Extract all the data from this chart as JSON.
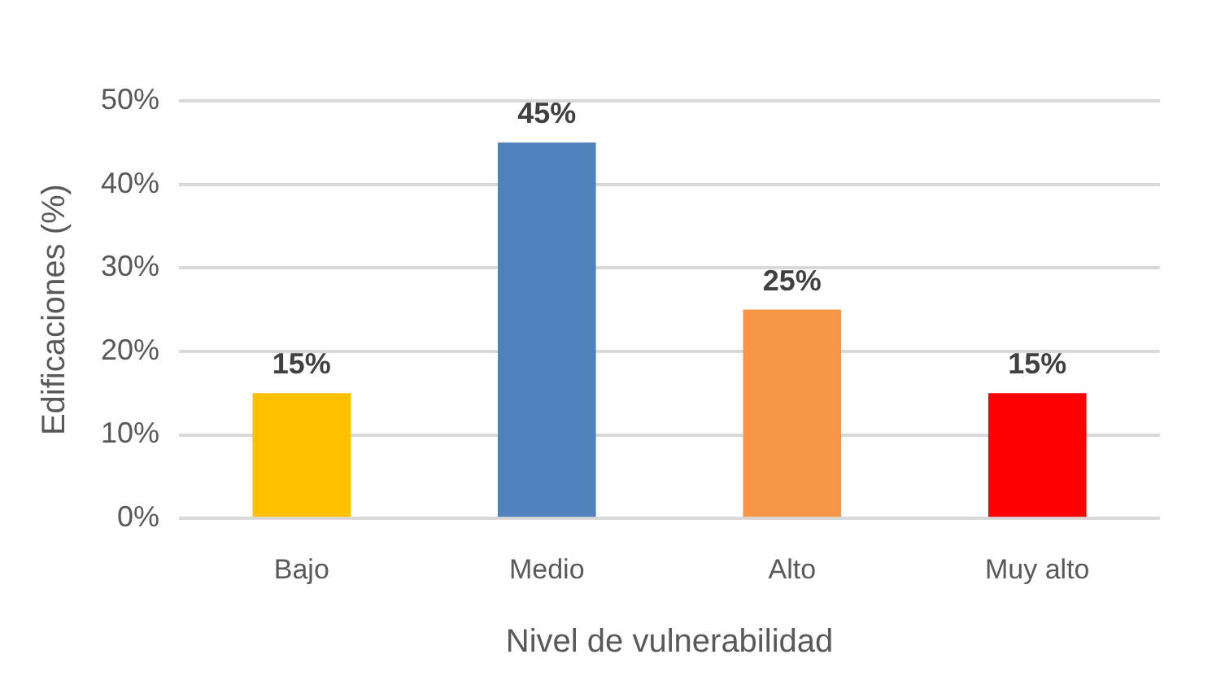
{
  "chart_data": {
    "type": "bar",
    "xlabel": "Nivel de vulnerabilidad",
    "ylabel": "Edificaciones (%)",
    "categories": [
      "Bajo",
      "Medio",
      "Alto",
      "Muy alto"
    ],
    "values": [
      15,
      45,
      25,
      15
    ],
    "colors": [
      "#ffc000",
      "#4f81bd",
      "#f79646",
      "#ff0000"
    ],
    "value_labels": [
      "15%",
      "45%",
      "25%",
      "15%"
    ],
    "ylim": [
      0,
      50
    ],
    "yticks": [
      {
        "value": 0,
        "label": "0%"
      },
      {
        "value": 10,
        "label": "10%"
      },
      {
        "value": 20,
        "label": "20%"
      },
      {
        "value": 30,
        "label": "30%"
      },
      {
        "value": 40,
        "label": "40%"
      },
      {
        "value": 50,
        "label": "50%"
      }
    ],
    "grid": "y",
    "legend": false
  }
}
